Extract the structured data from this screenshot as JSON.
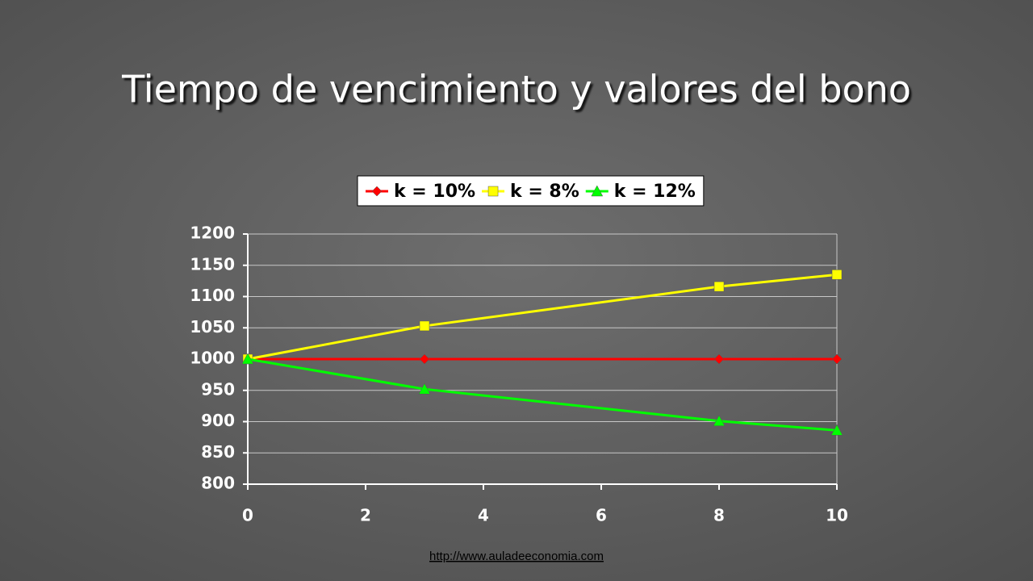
{
  "chart_data": {
    "type": "line",
    "title": "Tiempo de vencimiento y valores del bono",
    "x": [
      0,
      3,
      8,
      10
    ],
    "series": [
      {
        "name": "k = 10%",
        "color": "#ff0000",
        "marker": "diamond",
        "values": [
          1000,
          1000,
          1000,
          1000
        ]
      },
      {
        "name": "k = 8%",
        "color": "#ffff00",
        "marker": "square",
        "values": [
          1000,
          1053,
          1116,
          1135
        ]
      },
      {
        "name": "k = 12%",
        "color": "#00ff00",
        "marker": "triangle",
        "values": [
          1000,
          952,
          901,
          886
        ]
      }
    ],
    "xlim": [
      0,
      10
    ],
    "xticks": [
      0,
      2,
      4,
      6,
      8,
      10
    ],
    "ylim": [
      800,
      1200
    ],
    "yticks": [
      800,
      850,
      900,
      950,
      1000,
      1050,
      1100,
      1150,
      1200
    ],
    "grid": true,
    "legend": "top"
  },
  "footer": "http://www.auladeeconomia.com"
}
